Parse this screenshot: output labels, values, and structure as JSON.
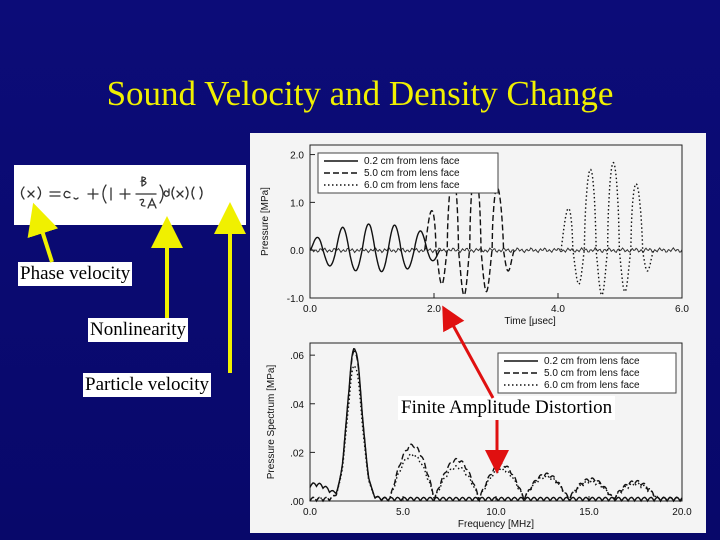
{
  "slide": {
    "title": "Sound Velocity and Density Change",
    "formula_image": "sound-velocity-nonlinear-equation",
    "labels": {
      "phase_velocity": "Phase velocity",
      "nonlinearity": "Nonlinearity",
      "particle_velocity": "Particle velocity",
      "finite_amplitude": "Finite Amplitude Distortion"
    },
    "colors": {
      "background": "#0a0a6e",
      "title": "#f0f000",
      "arrow_yellow": "#f0f000",
      "arrow_red": "#e01010"
    }
  },
  "chart_data": [
    {
      "type": "line",
      "ylabel": "Pressure [MPa]",
      "xlabel": "Time [μsec]",
      "xlim": [
        0,
        6
      ],
      "ylim": [
        -1.0,
        2.2
      ],
      "x_ticks": [
        "0.0",
        "2.0",
        "4.0",
        "6.0"
      ],
      "y_ticks": [
        "2.0",
        "1.0",
        "0.0",
        "-1.0"
      ],
      "legend": "top-left",
      "series": [
        {
          "name": "0.2 cm from lens face",
          "style": "solid",
          "start": 0.0,
          "end": 2.1,
          "cycles": 5,
          "peak": 0.55,
          "trough": -0.45
        },
        {
          "name": "5.0 cm from lens face",
          "style": "dashed",
          "start": 1.85,
          "end": 3.3,
          "cycles": 4,
          "peak": 1.75,
          "trough": -0.95
        },
        {
          "name": "6.0 cm from lens face",
          "style": "dotted",
          "start": 4.05,
          "end": 5.55,
          "cycles": 4,
          "peak": 1.85,
          "trough": -0.95
        }
      ]
    },
    {
      "type": "line",
      "ylabel": "Pressure Spectrum [MPa]",
      "xlabel": "Frequency [MHz]",
      "xlim": [
        0,
        20
      ],
      "ylim": [
        0,
        0.065
      ],
      "x_ticks": [
        "0.0",
        "5.0",
        "10.0",
        "15.0",
        "20.0"
      ],
      "y_ticks": [
        ".06",
        ".04",
        ".02",
        ".00"
      ],
      "legend": "top-right",
      "series": [
        {
          "name": "0.2 cm from lens face",
          "style": "solid",
          "peak_at": 2.4,
          "peak": 0.062,
          "lobes": [
            {
              "f": 0.3,
              "a": 0.006
            }
          ]
        },
        {
          "name": "5.0 cm from lens face",
          "style": "dashed",
          "peak_at": 2.4,
          "peak": 0.061,
          "lobes": [
            {
              "f": 5.5,
              "a": 0.022
            },
            {
              "f": 7.9,
              "a": 0.016
            },
            {
              "f": 10.3,
              "a": 0.014
            },
            {
              "f": 12.7,
              "a": 0.01
            },
            {
              "f": 15.1,
              "a": 0.008
            },
            {
              "f": 17.5,
              "a": 0.007
            }
          ]
        },
        {
          "name": "6.0 cm from lens face",
          "style": "dotted",
          "peak_at": 2.4,
          "peak": 0.055,
          "lobes": [
            {
              "f": 5.5,
              "a": 0.018
            },
            {
              "f": 7.9,
              "a": 0.013
            },
            {
              "f": 10.3,
              "a": 0.012
            },
            {
              "f": 12.7,
              "a": 0.009
            },
            {
              "f": 15.1,
              "a": 0.007
            },
            {
              "f": 17.5,
              "a": 0.006
            }
          ]
        }
      ]
    }
  ]
}
